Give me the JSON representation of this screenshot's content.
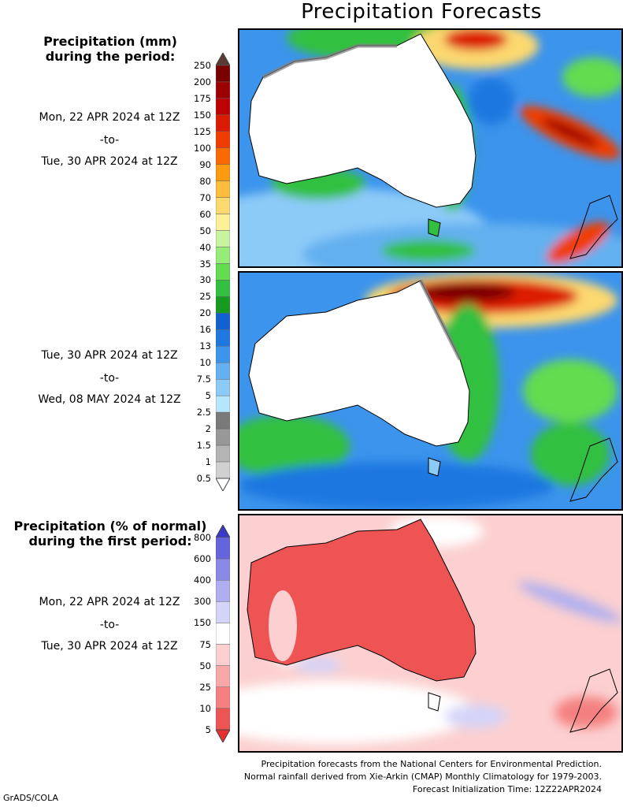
{
  "title": "Precipitation Forecasts",
  "precip_label": [
    "Precipitation (mm)",
    "during the period:"
  ],
  "period1": {
    "start": "Mon, 22 APR 2024 at 12Z",
    "to": "-to-",
    "end": "Tue, 30 APR 2024 at 12Z"
  },
  "period2": {
    "start": "Tue, 30 APR 2024 at 12Z",
    "to": "-to-",
    "end": "Wed, 08 MAY 2024 at 12Z"
  },
  "pct_label": [
    "Precipitation (% of normal)",
    "during the first period:"
  ],
  "period3": {
    "start": "Mon, 22 APR 2024 at 12Z",
    "to": "-to-",
    "end": "Tue, 30 APR 2024 at 12Z"
  },
  "mm_scale": {
    "ticks": [
      "250",
      "200",
      "175",
      "150",
      "125",
      "100",
      "90",
      "80",
      "70",
      "60",
      "50",
      "40",
      "35",
      "30",
      "25",
      "20",
      "16",
      "13",
      "10",
      "7.5",
      "5",
      "2.5",
      "2",
      "1.5",
      "1",
      "0.5"
    ],
    "colors": [
      "#5c3a34",
      "#7a0000",
      "#9c0000",
      "#be0000",
      "#dc1a00",
      "#f03c00",
      "#f86a00",
      "#fc9a10",
      "#fcbc3c",
      "#fcd870",
      "#fcf098",
      "#c8f4a0",
      "#96ec78",
      "#64dc50",
      "#32c040",
      "#169a20",
      "#1060d0",
      "#1e78e0",
      "#3c94ec",
      "#64b0f0",
      "#8ccaf8",
      "#b4e6fc",
      "#7a7a7a",
      "#989898",
      "#b4b4b4",
      "#d0d0d0",
      "#ffffff"
    ]
  },
  "pct_scale": {
    "ticks": [
      "800",
      "600",
      "400",
      "300",
      "150",
      "75",
      "50",
      "25",
      "10",
      "5"
    ],
    "colors": [
      "#3a3ac8",
      "#6464dc",
      "#8a8ae6",
      "#aeaef0",
      "#d4d4f8",
      "#ffffff",
      "#fcd0d0",
      "#f8a8a8",
      "#f48080",
      "#ee5454",
      "#e83030"
    ]
  },
  "footer": [
    "Precipitation forecasts from the National Centers for Environmental Prediction.",
    "Normal rainfall derived from Xie-Arkin (CMAP) Monthly Climatology for 1979-2003.",
    "Forecast Initialization Time: 12Z22APR2024"
  ],
  "credit": "GrADS/COLA"
}
